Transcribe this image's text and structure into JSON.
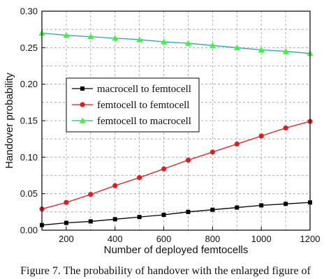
{
  "caption": "Figure 7. The probability of handover with the enlarged figure of",
  "chart_data": {
    "type": "line",
    "xlabel": "Number of deployed femtocells",
    "ylabel": "Handover probability",
    "xlim": [
      100,
      1200
    ],
    "ylim": [
      0,
      0.3
    ],
    "xticks": [
      200,
      400,
      600,
      800,
      1000,
      1200
    ],
    "yticks": [
      0.0,
      0.05,
      0.1,
      0.15,
      0.2,
      0.25,
      0.3
    ],
    "ytick_labels": [
      "0.00",
      "0.05",
      "0.10",
      "0.15",
      "0.20",
      "0.25",
      "0.30"
    ],
    "grid": true,
    "legend_position": "center-left",
    "x": [
      100,
      200,
      300,
      400,
      500,
      600,
      700,
      800,
      900,
      1000,
      1100,
      1200
    ],
    "series": [
      {
        "name": "macrocell to femtocell",
        "color": "#000000",
        "marker": "square",
        "values": [
          0.007,
          0.01,
          0.012,
          0.015,
          0.018,
          0.021,
          0.025,
          0.028,
          0.031,
          0.034,
          0.036,
          0.038
        ]
      },
      {
        "name": "femtocell to femtocell",
        "color": "#e41a1c",
        "marker": "circle",
        "values": [
          0.029,
          0.038,
          0.049,
          0.061,
          0.072,
          0.084,
          0.096,
          0.107,
          0.118,
          0.129,
          0.14,
          0.149
        ]
      },
      {
        "name": "femtocell to macrocell",
        "color": "#2ea3b5",
        "marker_color": "#33ff33",
        "marker": "triangle",
        "values": [
          0.27,
          0.267,
          0.265,
          0.263,
          0.261,
          0.258,
          0.256,
          0.253,
          0.25,
          0.247,
          0.245,
          0.242
        ]
      }
    ]
  }
}
